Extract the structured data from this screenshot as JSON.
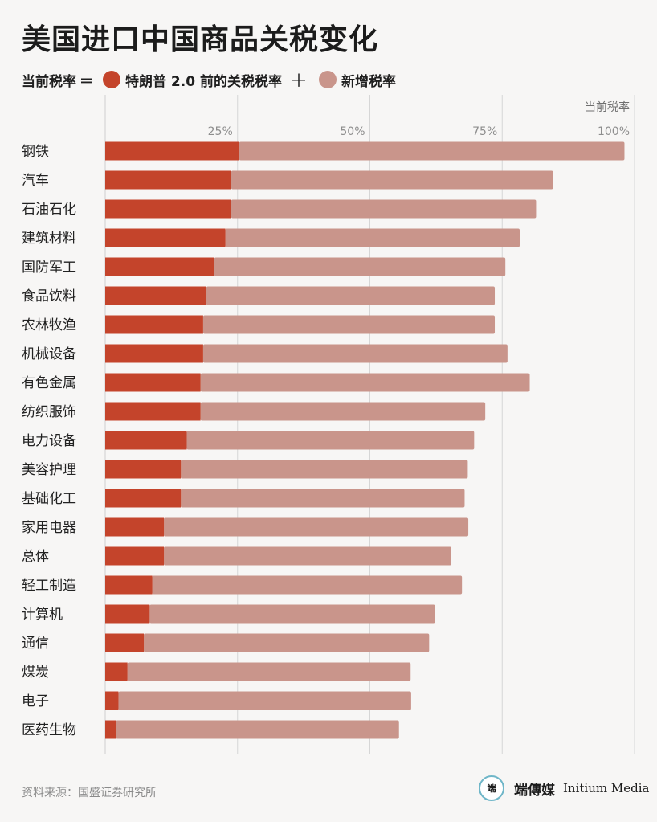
{
  "title": "美国进口中国商品关税变化",
  "legend": {
    "prefix": "当前税率",
    "equals": "＝",
    "plus": "＋",
    "items": [
      {
        "label": "特朗普 2.0 前的关税税率",
        "color": "#c4442b"
      },
      {
        "label": "新增税率",
        "color": "#c9958b"
      }
    ]
  },
  "chart_data": {
    "type": "bar",
    "orientation": "horizontal",
    "stacked": true,
    "axis_title": "当前税率",
    "xlim": [
      0,
      100
    ],
    "ticks": [
      {
        "value": 25,
        "label": "25%"
      },
      {
        "value": 50,
        "label": "50%"
      },
      {
        "value": 75,
        "label": "75%"
      },
      {
        "value": 100,
        "label": "100%"
      }
    ],
    "grid": true,
    "categories": [
      "钢铁",
      "汽车",
      "石油石化",
      "建筑材料",
      "国防军工",
      "食品饮料",
      "农林牧渔",
      "机械设备",
      "有色金属",
      "纺织服饰",
      "电力设备",
      "美容护理",
      "基础化工",
      "家用电器",
      "总体",
      "轻工制造",
      "计算机",
      "通信",
      "煤炭",
      "电子",
      "医药生物"
    ],
    "series": [
      {
        "name": "特朗普 2.0 前的关税税率",
        "color": "#c4442b",
        "values": [
          25.3,
          23.8,
          23.8,
          22.7,
          20.6,
          19.1,
          18.5,
          18.5,
          18.0,
          18.0,
          15.4,
          14.3,
          14.3,
          11.1,
          11.1,
          8.9,
          8.4,
          7.3,
          4.2,
          2.5,
          2.0
        ]
      },
      {
        "name": "新增税率",
        "color": "#c9958b",
        "values": [
          72.8,
          60.8,
          57.6,
          55.6,
          55.0,
          54.5,
          55.1,
          57.5,
          62.2,
          53.8,
          54.3,
          54.2,
          53.6,
          57.5,
          54.3,
          58.5,
          53.9,
          53.9,
          53.5,
          55.3,
          53.5
        ]
      }
    ]
  },
  "footer": {
    "source": "资料来源：国盛证券研究所",
    "logo_text": "端",
    "brand_cn": "端傳媒",
    "brand_en": "Initium Media"
  }
}
